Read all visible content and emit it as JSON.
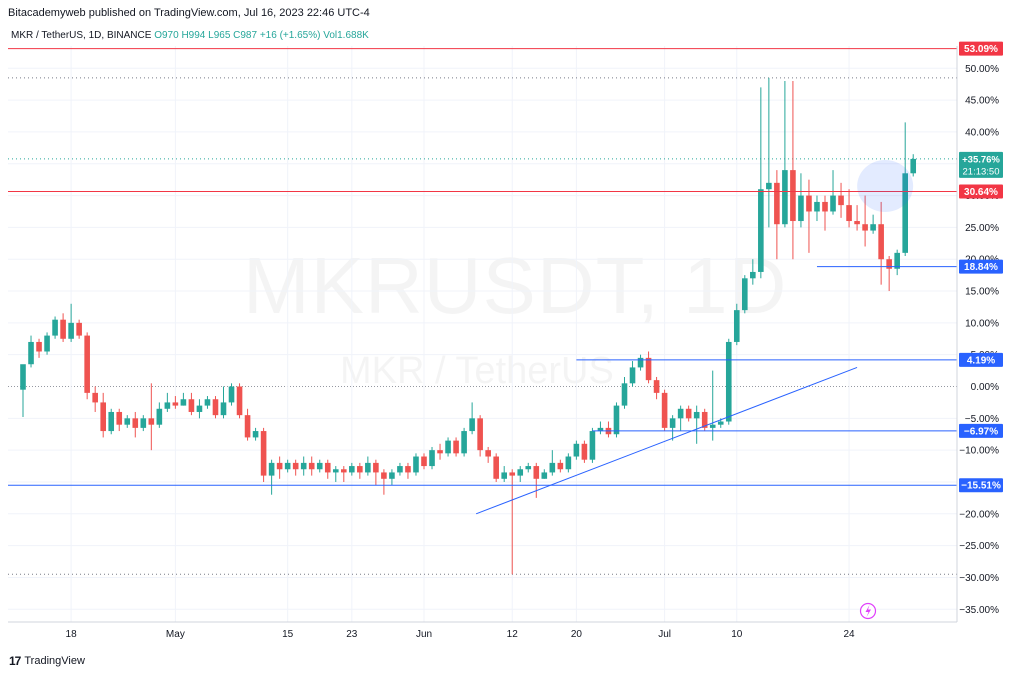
{
  "header": {
    "published": "Bitacademyweb published on TradingView.com, Jul 16, 2023 22:46 UTC-4",
    "symbol": "MKR / TetherUS, 1D, BINANCE",
    "ohlc": "O970  H994  L965  C987  +16 (+1.65%)",
    "volume": "Vol1.688K"
  },
  "watermark": {
    "main": "MKRUSDT, 1D",
    "sub": "MKR / TetherUS"
  },
  "footer": {
    "brand": "TradingView"
  },
  "colors": {
    "up": "#26a69a",
    "down": "#ef5350",
    "hline_red": "#f23645",
    "hline_blue": "#2962ff",
    "grid": "#f0f3fa"
  },
  "chart_data": {
    "type": "candlestick",
    "y_unit": "%",
    "ylim": [
      -37,
      53.5
    ],
    "y_ticks": [
      50,
      45,
      40,
      35,
      30,
      25,
      20,
      15,
      10,
      5,
      0,
      -5,
      -10,
      -15,
      -20,
      -25,
      -30,
      -35
    ],
    "x_labels": [
      {
        "label": "18",
        "i": 6
      },
      {
        "label": "May",
        "i": 19
      },
      {
        "label": "15",
        "i": 33
      },
      {
        "label": "23",
        "i": 41
      },
      {
        "label": "Jun",
        "i": 50
      },
      {
        "label": "12",
        "i": 61
      },
      {
        "label": "20",
        "i": 69
      },
      {
        "label": "Jul",
        "i": 80
      },
      {
        "label": "10",
        "i": 89
      },
      {
        "label": "24",
        "i": 103
      }
    ],
    "candles": [
      [
        -0.5,
        3.5,
        2.8,
        -4.8
      ],
      [
        3.5,
        7.0,
        8.0,
        3.0
      ],
      [
        7.0,
        5.5,
        7.5,
        4.5
      ],
      [
        5.5,
        8.0,
        8.5,
        5.0
      ],
      [
        8.0,
        10.5,
        11.0,
        7.5
      ],
      [
        10.5,
        7.5,
        11.5,
        7.0
      ],
      [
        7.5,
        10.0,
        13.0,
        7.0
      ],
      [
        10.0,
        8.0,
        10.5,
        7.5
      ],
      [
        8.0,
        -1.0,
        8.5,
        -2.0
      ],
      [
        -1.0,
        -2.5,
        0.0,
        -4.0
      ],
      [
        -2.5,
        -7.0,
        -1.0,
        -8.0
      ],
      [
        -7.0,
        -4.0,
        -3.5,
        -7.5
      ],
      [
        -4.0,
        -6.0,
        -3.5,
        -7.0
      ],
      [
        -6.0,
        -5.0,
        -4.5,
        -6.5
      ],
      [
        -5.0,
        -6.5,
        -4.0,
        -8.0
      ],
      [
        -6.5,
        -5.0,
        -4.5,
        -7.0
      ],
      [
        -5.0,
        -6.0,
        0.5,
        -10.0
      ],
      [
        -6.0,
        -3.5,
        -2.5,
        -6.5
      ],
      [
        -3.5,
        -2.5,
        -1.0,
        -4.0
      ],
      [
        -2.5,
        -3.0,
        -1.5,
        -3.5
      ],
      [
        -3.0,
        -2.0,
        -1.0,
        -3.0
      ],
      [
        -2.0,
        -4.0,
        -1.0,
        -4.5
      ],
      [
        -4.0,
        -3.0,
        -2.0,
        -5.0
      ],
      [
        -3.0,
        -2.0,
        -1.5,
        -3.5
      ],
      [
        -2.0,
        -4.5,
        -1.5,
        -5.0
      ],
      [
        -4.5,
        -2.5,
        0.0,
        -5.0
      ],
      [
        -2.5,
        0.0,
        0.5,
        -3.0
      ],
      [
        0.0,
        -4.5,
        0.5,
        -5.0
      ],
      [
        -4.5,
        -8.0,
        -3.5,
        -8.5
      ],
      [
        -8.0,
        -7.0,
        -6.5,
        -8.5
      ],
      [
        -7.0,
        -14.0,
        -6.5,
        -15.0
      ],
      [
        -14.0,
        -12.0,
        -11.5,
        -17.0
      ],
      [
        -12.0,
        -13.0,
        -11.0,
        -14.5
      ],
      [
        -13.0,
        -12.0,
        -11.5,
        -13.5
      ],
      [
        -12.0,
        -13.0,
        -11.5,
        -14.0
      ],
      [
        -13.0,
        -12.0,
        -11.0,
        -14.0
      ],
      [
        -12.0,
        -13.0,
        -11.0,
        -14.0
      ],
      [
        -13.0,
        -12.0,
        -11.5,
        -13.5
      ],
      [
        -12.0,
        -13.5,
        -11.5,
        -14.5
      ],
      [
        -13.5,
        -13.0,
        -12.5,
        -15.0
      ],
      [
        -13.0,
        -13.5,
        -12.5,
        -15.0
      ],
      [
        -13.5,
        -12.5,
        -12.0,
        -14.0
      ],
      [
        -12.5,
        -13.5,
        -12.0,
        -14.5
      ],
      [
        -13.5,
        -12.0,
        -11.0,
        -14.0
      ],
      [
        -12.0,
        -13.5,
        -11.5,
        -15.5
      ],
      [
        -13.5,
        -14.5,
        -13.0,
        -17.0
      ],
      [
        -14.5,
        -13.5,
        -13.0,
        -15.5
      ],
      [
        -13.5,
        -12.5,
        -12.0,
        -14.0
      ],
      [
        -12.5,
        -13.5,
        -12.0,
        -14.5
      ],
      [
        -13.5,
        -11.0,
        -10.5,
        -14.0
      ],
      [
        -11.0,
        -12.5,
        -10.5,
        -13.0
      ],
      [
        -12.5,
        -10.0,
        -9.5,
        -13.0
      ],
      [
        -10.0,
        -10.5,
        -9.0,
        -11.5
      ],
      [
        -10.5,
        -8.5,
        -8.0,
        -11.0
      ],
      [
        -8.5,
        -10.5,
        -8.0,
        -11.0
      ],
      [
        -10.5,
        -7.0,
        -6.5,
        -11.0
      ],
      [
        -7.0,
        -5.0,
        -2.5,
        -7.5
      ],
      [
        -5.0,
        -10.0,
        -4.5,
        -11.0
      ],
      [
        -10.0,
        -11.0,
        -9.5,
        -12.0
      ],
      [
        -11.0,
        -14.5,
        -10.5,
        -15.0
      ],
      [
        -14.5,
        -13.5,
        -12.5,
        -15.0
      ],
      [
        -13.5,
        -14.0,
        -13.0,
        -29.5
      ],
      [
        -14.0,
        -13.0,
        -12.5,
        -15.0
      ],
      [
        -13.0,
        -12.5,
        -12.0,
        -13.5
      ],
      [
        -12.5,
        -14.5,
        -12.0,
        -17.5
      ],
      [
        -14.5,
        -13.5,
        -13.0,
        -14.5
      ],
      [
        -13.5,
        -12.0,
        -10.0,
        -14.0
      ],
      [
        -12.0,
        -13.0,
        -11.5,
        -13.5
      ],
      [
        -13.0,
        -11.0,
        -10.5,
        -13.5
      ],
      [
        -11.0,
        -9.0,
        -8.5,
        -11.5
      ],
      [
        -9.0,
        -11.5,
        -8.5,
        -12.0
      ],
      [
        -11.5,
        -7.0,
        -6.5,
        -12.0
      ],
      [
        -7.0,
        -6.5,
        -5.5,
        -7.5
      ],
      [
        -6.5,
        -7.5,
        -5.5,
        -8.0
      ],
      [
        -7.5,
        -3.0,
        -2.5,
        -8.0
      ],
      [
        -3.0,
        0.5,
        1.5,
        -3.5
      ],
      [
        0.5,
        3.0,
        4.0,
        0.0
      ],
      [
        3.0,
        4.5,
        5.0,
        2.5
      ],
      [
        4.5,
        1.0,
        5.5,
        0.5
      ],
      [
        1.0,
        -1.0,
        1.5,
        -2.0
      ],
      [
        -1.0,
        -6.5,
        -0.5,
        -7.0
      ],
      [
        -6.5,
        -5.0,
        -4.5,
        -8.5
      ],
      [
        -5.0,
        -3.5,
        -3.0,
        -7.0
      ],
      [
        -3.5,
        -5.0,
        -3.0,
        -5.5
      ],
      [
        -5.0,
        -4.0,
        -3.0,
        -9.0
      ],
      [
        -4.0,
        -6.5,
        -3.5,
        -7.0
      ],
      [
        -6.5,
        -6.0,
        2.5,
        -8.5
      ],
      [
        -6.0,
        -5.5,
        -5.0,
        -6.5
      ],
      [
        -5.5,
        7.0,
        7.5,
        -6.0
      ],
      [
        7.0,
        12.0,
        13.0,
        6.5
      ],
      [
        12.0,
        17.0,
        17.5,
        11.5
      ],
      [
        17.0,
        18.0,
        20.0,
        16.0
      ],
      [
        18.0,
        31.0,
        47.0,
        17.0
      ],
      [
        31.0,
        32.0,
        48.5,
        25.0
      ],
      [
        32.0,
        25.5,
        34.0,
        20.0
      ],
      [
        25.5,
        34.0,
        48.0,
        25.0
      ],
      [
        34.0,
        26.0,
        48.0,
        20.0
      ],
      [
        26.0,
        30.0,
        33.5,
        25.0
      ],
      [
        30.0,
        27.5,
        32.5,
        21.0
      ],
      [
        27.5,
        29.0,
        30.0,
        26.0
      ],
      [
        29.0,
        27.5,
        30.0,
        24.5
      ],
      [
        27.5,
        30.0,
        34.0,
        27.0
      ],
      [
        30.0,
        28.5,
        32.0,
        26.5
      ],
      [
        28.5,
        26.0,
        31.0,
        25.0
      ],
      [
        26.0,
        25.5,
        28.5,
        24.5
      ],
      [
        25.5,
        24.5,
        30.0,
        22.0
      ],
      [
        24.5,
        25.5,
        27.0,
        24.0
      ],
      [
        25.5,
        20.0,
        29.0,
        16.0
      ],
      [
        20.0,
        18.5,
        20.5,
        15.0
      ],
      [
        18.5,
        21.0,
        21.5,
        17.5
      ],
      [
        21.0,
        33.5,
        41.5,
        20.5
      ],
      [
        33.5,
        35.76,
        36.5,
        33.0
      ]
    ],
    "hlines": [
      {
        "value": 53.09,
        "label": "53.09%",
        "color": "red"
      },
      {
        "value": 30.64,
        "label": "30.64%",
        "color": "red"
      },
      {
        "value": 18.84,
        "label": "18.84%",
        "color": "blue",
        "from_i": 99
      },
      {
        "value": 4.19,
        "label": "4.19%",
        "color": "blue",
        "from_i": 69
      },
      {
        "value": -6.97,
        "label": "−6.97%",
        "color": "blue",
        "from_i": 71
      },
      {
        "value": -15.51,
        "label": "−15.51%",
        "color": "blue"
      }
    ],
    "trendline": {
      "from": [
        56.5,
        -20.0
      ],
      "to": [
        104,
        3.0
      ]
    },
    "current": {
      "value": 35.76,
      "label": "+35.76%",
      "countdown": "21:13:50"
    },
    "dotted_levels": [
      48.5,
      35.76,
      -29.5
    ]
  }
}
